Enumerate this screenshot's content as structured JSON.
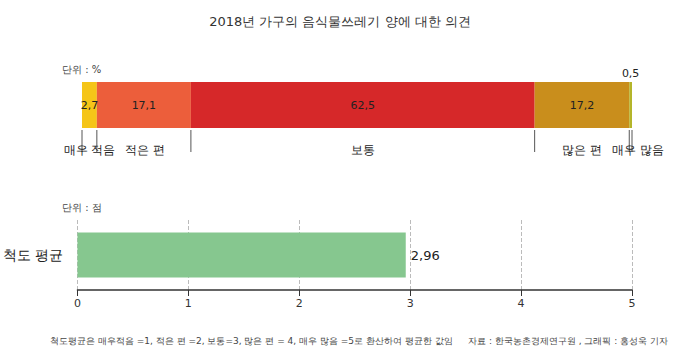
{
  "chart_data": [
    {
      "type": "bar",
      "title": "2018년 가구의 음식물쓰레기 양에 대한 의견",
      "annotations": [
        "단위 : %"
      ],
      "orientation": "horizontal",
      "stacked": true,
      "data_labels": true,
      "tick_labels": false,
      "grid": false,
      "xlim": [
        0,
        100
      ],
      "xticks": [],
      "series": [
        {
          "name": "매우 적음",
          "color": "#f5c518",
          "values": [
            2.7
          ],
          "value_labels": [
            "2,7"
          ]
        },
        {
          "name": "적은 편",
          "color": "#ec5e3b",
          "values": [
            17.1
          ],
          "value_labels": [
            "17,1"
          ]
        },
        {
          "name": "보통",
          "color": "#d62829",
          "values": [
            62.5
          ],
          "value_labels": [
            "62,5"
          ]
        },
        {
          "name": "많은 편",
          "color": "#c98e1c",
          "values": [
            17.2
          ],
          "value_labels": [
            "17,2"
          ]
        },
        {
          "name": "매우 많음",
          "color": "#b4b52a",
          "values": [
            0.5
          ],
          "value_labels": [
            "0,5"
          ]
        }
      ]
    },
    {
      "type": "bar",
      "annotations": [
        "단위 : 점",
        "척도평균은 매우적음 =1, 적은 편 =2, 보통=3, 많은 편 = 4, 매우 많음 =5로 환산하여 평균한 값임",
        "자료 : 한국농촌경제연구원 , 그래픽 : 홍성욱 기자"
      ],
      "orientation": "horizontal",
      "categories": [
        "척도 평균"
      ],
      "values": [
        2.96
      ],
      "value_labels": [
        "2,96"
      ],
      "color": "#86c78f",
      "data_labels": true,
      "grid": true,
      "xlim": [
        0,
        5
      ],
      "xticks": [
        0,
        1,
        2,
        3,
        4,
        5
      ]
    }
  ]
}
